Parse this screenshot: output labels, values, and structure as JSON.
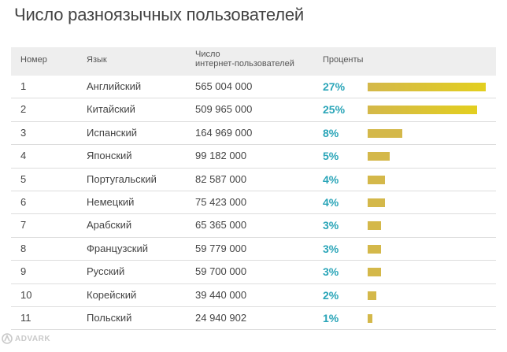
{
  "title": "Число разноязычных пользователей",
  "headers": {
    "num": "Номер",
    "lang": "Язык",
    "users_line1": "Число",
    "users_line2": "интернет-пользователей",
    "pct": "Проценты"
  },
  "logo_text": "ADVARK",
  "colors": {
    "percent_text": "#2aa5b8",
    "bar_gold": "#d4b84a",
    "bar_yellow": "#e3cf1f",
    "header_bg": "#eeeeee"
  },
  "chart_data": {
    "type": "bar",
    "title": "Число разноязычных пользователей",
    "categories": [
      "Английский",
      "Китайский",
      "Испанский",
      "Японский",
      "Португальский",
      "Немецкий",
      "Арабский",
      "Французский",
      "Русский",
      "Корейский",
      "Польский"
    ],
    "series": [
      {
        "values": [
          27,
          25,
          8,
          5,
          4,
          4,
          3,
          3,
          3,
          2,
          1
        ]
      }
    ],
    "xlabel": "",
    "ylabel": "",
    "rows": [
      {
        "num": "1",
        "lang": "Английский",
        "users": "565 004 000",
        "pct": "27%",
        "value": 27
      },
      {
        "num": "2",
        "lang": "Китайский",
        "users": "509 965 000",
        "pct": "25%",
        "value": 25
      },
      {
        "num": "3",
        "lang": "Испанский",
        "users": "164 969 000",
        "pct": "8%",
        "value": 8
      },
      {
        "num": "4",
        "lang": "Японский",
        "users": "99 182 000",
        "pct": "5%",
        "value": 5
      },
      {
        "num": "5",
        "lang": "Португальский",
        "users": "82 587 000",
        "pct": "4%",
        "value": 4
      },
      {
        "num": "6",
        "lang": "Немецкий",
        "users": "75 423 000",
        "pct": "4%",
        "value": 4
      },
      {
        "num": "7",
        "lang": "Арабский",
        "users": "65 365 000",
        "pct": "3%",
        "value": 3
      },
      {
        "num": "8",
        "lang": "Французский",
        "users": "59 779 000",
        "pct": "3%",
        "value": 3
      },
      {
        "num": "9",
        "lang": "Русский",
        "users": "59 700 000",
        "pct": "3%",
        "value": 3
      },
      {
        "num": "10",
        "lang": "Корейский",
        "users": "39 440 000",
        "pct": "2%",
        "value": 2
      },
      {
        "num": "11",
        "lang": "Польский",
        "users": "24 940 902",
        "pct": "1%",
        "value": 1
      }
    ]
  }
}
